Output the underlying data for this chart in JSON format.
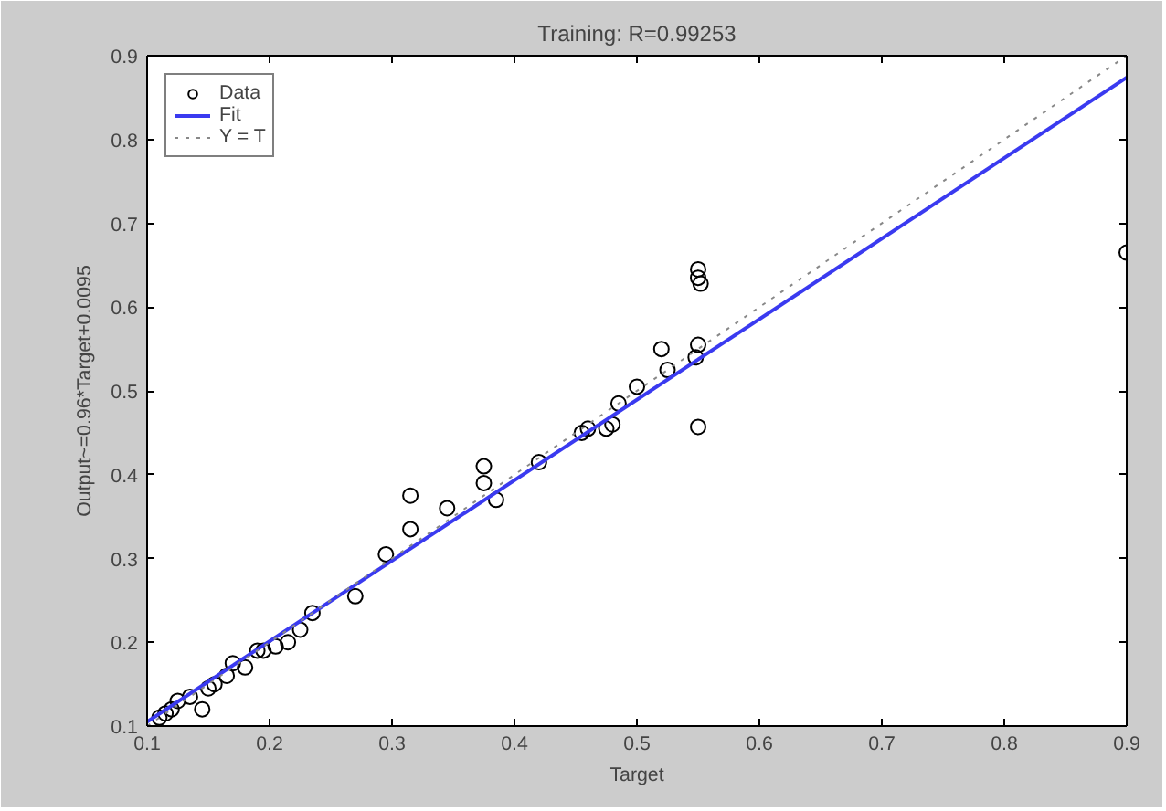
{
  "chart_data": {
    "type": "scatter",
    "title": "Training: R=0.99253",
    "xlabel": "Target",
    "ylabel": "Output~=0.96*Target+0.0095",
    "xlim": [
      0.1,
      0.9
    ],
    "ylim": [
      0.1,
      0.9
    ],
    "xticks": [
      0.1,
      0.2,
      0.3,
      0.4,
      0.5,
      0.6,
      0.7,
      0.8,
      0.9
    ],
    "yticks": [
      0.1,
      0.2,
      0.3,
      0.4,
      0.5,
      0.6,
      0.7,
      0.8,
      0.9
    ],
    "grid": false,
    "legend": "top left",
    "series": [
      {
        "name": "Data",
        "marker": "circle",
        "color": "#000000",
        "x": [
          0.9,
          0.55,
          0.55,
          0.552,
          0.55,
          0.548,
          0.55,
          0.52,
          0.525,
          0.5,
          0.485,
          0.48,
          0.475,
          0.46,
          0.455,
          0.42,
          0.385,
          0.375,
          0.375,
          0.345,
          0.315,
          0.315,
          0.295,
          0.27,
          0.235,
          0.225,
          0.215,
          0.205,
          0.195,
          0.19,
          0.18,
          0.17,
          0.165,
          0.155,
          0.15,
          0.145,
          0.135,
          0.125,
          0.12,
          0.115,
          0.11
        ],
        "values": [
          0.665,
          0.645,
          0.635,
          0.628,
          0.555,
          0.54,
          0.457,
          0.55,
          0.525,
          0.505,
          0.485,
          0.46,
          0.455,
          0.455,
          0.45,
          0.415,
          0.37,
          0.41,
          0.39,
          0.36,
          0.375,
          0.335,
          0.305,
          0.255,
          0.235,
          0.215,
          0.2,
          0.195,
          0.19,
          0.19,
          0.17,
          0.175,
          0.16,
          0.15,
          0.145,
          0.12,
          0.135,
          0.13,
          0.12,
          0.115,
          0.11
        ]
      },
      {
        "name": "Fit",
        "type": "line",
        "marker": "none",
        "line_style": "solid",
        "color": "#3a3af0",
        "x": [
          0.1,
          0.9
        ],
        "values": [
          0.105,
          0.874
        ]
      },
      {
        "name": "Y = T",
        "type": "line",
        "marker": "none",
        "line_style": "dotted",
        "color": "#888888",
        "x": [
          0.1,
          0.9
        ],
        "values": [
          0.1,
          0.9
        ]
      }
    ]
  }
}
